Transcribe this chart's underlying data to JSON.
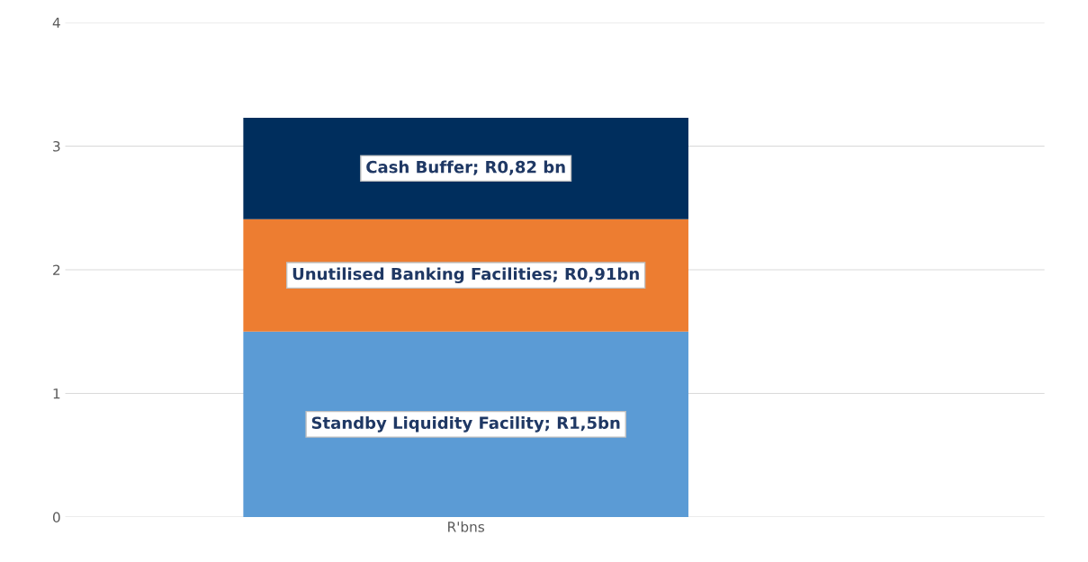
{
  "chart_data": {
    "type": "bar",
    "stacked": true,
    "categories": [
      "R'bns"
    ],
    "ylim": [
      0,
      4
    ],
    "yticks": [
      0,
      1,
      2,
      3,
      4
    ],
    "grid": "y",
    "legend": false,
    "series": [
      {
        "color": "#5b9bd5",
        "values": [
          1.5
        ],
        "value_labels": [
          "Standby Liquidity Facility; R1,5bn"
        ]
      },
      {
        "color": "#ed7d31",
        "values": [
          0.91
        ],
        "value_labels": [
          "Unutilised Banking Facilities; R0,91bn"
        ]
      },
      {
        "color": "#002e5d",
        "values": [
          0.82
        ],
        "value_labels": [
          "Cash Buffer; R0,82 bn"
        ]
      }
    ]
  }
}
